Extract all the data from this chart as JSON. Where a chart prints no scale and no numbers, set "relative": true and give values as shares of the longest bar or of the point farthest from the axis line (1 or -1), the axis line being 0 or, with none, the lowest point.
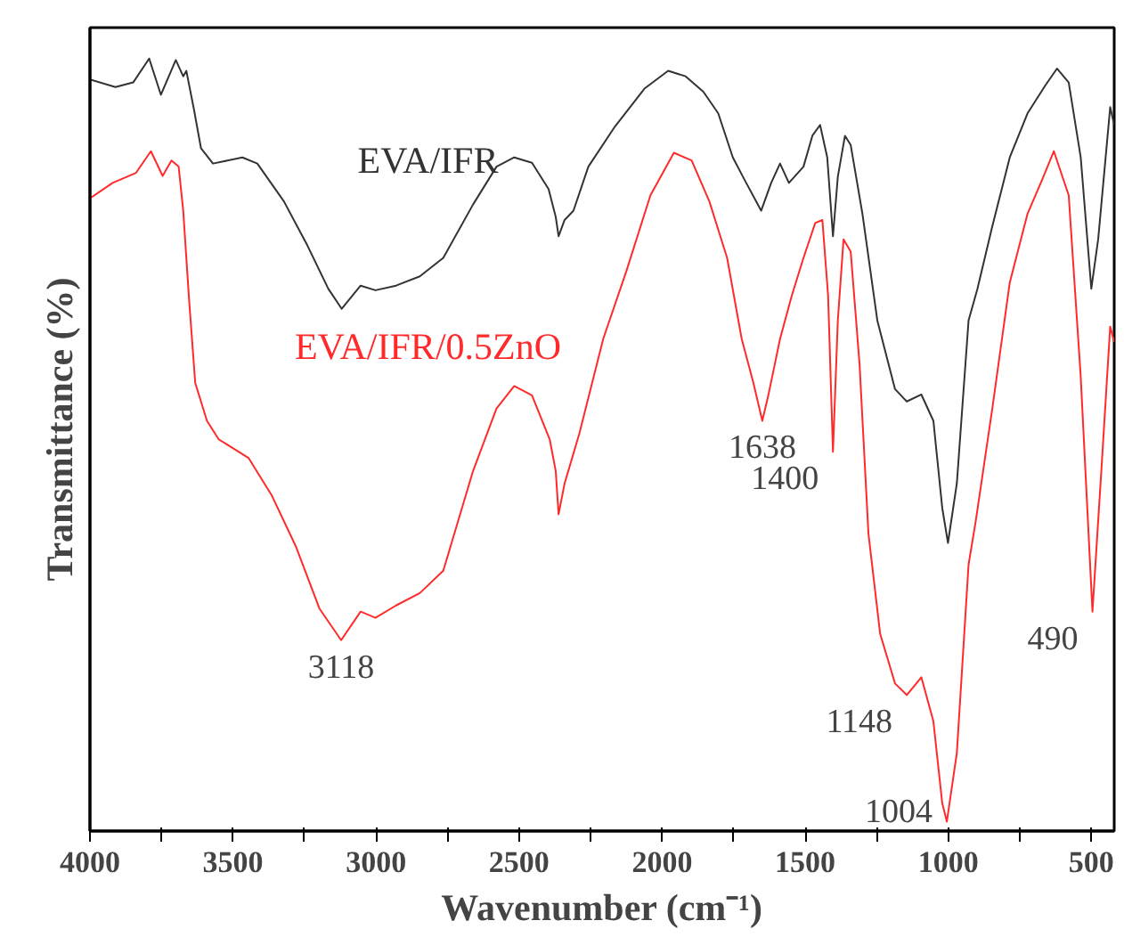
{
  "chart_data": {
    "type": "line",
    "relative": true,
    "xlabel": "Wavenumber (cm⁻¹)",
    "ylabel": "Transmittance (%)",
    "legend": false,
    "xlim": [
      4000,
      420
    ],
    "xticks": [
      4000,
      {
        "value": 3750,
        "label": null
      },
      3500,
      {
        "value": 3250,
        "label": null
      },
      3000,
      {
        "value": 2750,
        "label": null
      },
      2500,
      {
        "value": 2250,
        "label": null
      },
      2000,
      {
        "value": 1750,
        "label": null
      },
      1500,
      {
        "value": 1250,
        "label": null
      },
      1000,
      {
        "value": 750,
        "label": null
      },
      500
    ],
    "series": [
      {
        "name": "EVA/IFR",
        "color": "#333333",
        "x": [
          4000,
          3911,
          3849,
          3793,
          3752,
          3700,
          3674,
          3663,
          3636,
          3612,
          3570,
          3467,
          3415,
          3322,
          3240,
          3167,
          3120,
          3054,
          3002,
          2930,
          2847,
          2765,
          2661,
          2579,
          2517,
          2455,
          2397,
          2372,
          2362,
          2341,
          2310,
          2258,
          2165,
          2062,
          1979,
          1918,
          1856,
          1804,
          1753,
          1712,
          1654,
          1619,
          1588,
          1557,
          1506,
          1475,
          1448,
          1423,
          1403,
          1386,
          1361,
          1341,
          1300,
          1248,
          1186,
          1145,
          1094,
          1052,
          1021,
          1001,
          970,
          929,
          898,
          846,
          785,
          723,
          661,
          620,
          579,
          537,
          500,
          476,
          434,
          420
        ],
        "values": [
          0.973,
          0.963,
          0.969,
          1.0,
          0.953,
          0.998,
          0.977,
          0.984,
          0.933,
          0.884,
          0.864,
          0.872,
          0.864,
          0.815,
          0.758,
          0.702,
          0.676,
          0.706,
          0.7,
          0.706,
          0.718,
          0.742,
          0.811,
          0.86,
          0.872,
          0.865,
          0.831,
          0.795,
          0.77,
          0.791,
          0.803,
          0.86,
          0.912,
          0.961,
          0.984,
          0.977,
          0.957,
          0.929,
          0.872,
          0.843,
          0.803,
          0.839,
          0.864,
          0.839,
          0.86,
          0.9,
          0.914,
          0.872,
          0.77,
          0.847,
          0.9,
          0.888,
          0.799,
          0.661,
          0.572,
          0.556,
          0.565,
          0.531,
          0.418,
          0.373,
          0.45,
          0.661,
          0.702,
          0.783,
          0.872,
          0.929,
          0.965,
          0.987,
          0.969,
          0.872,
          0.702,
          0.766,
          0.937,
          0.914
        ]
      },
      {
        "name": "EVA/IFR/0.5ZnO",
        "color": "#ff2a2a",
        "x": [
          4000,
          3921,
          3839,
          3787,
          3746,
          3715,
          3690,
          3674,
          3653,
          3632,
          3591,
          3550,
          3446,
          3364,
          3281,
          3198,
          3122,
          3054,
          3002,
          2930,
          2847,
          2765,
          2661,
          2579,
          2517,
          2455,
          2393,
          2372,
          2362,
          2341,
          2289,
          2206,
          2124,
          2041,
          1959,
          1897,
          1835,
          1773,
          1722,
          1681,
          1650,
          1629,
          1588,
          1547,
          1506,
          1465,
          1440,
          1420,
          1403,
          1386,
          1366,
          1341,
          1310,
          1279,
          1238,
          1186,
          1145,
          1094,
          1052,
          1021,
          1005,
          970,
          929,
          904,
          846,
          785,
          723,
          672,
          631,
          579,
          537,
          496,
          465,
          434,
          420
        ],
        "values": [
          0.819,
          0.839,
          0.852,
          0.88,
          0.848,
          0.868,
          0.86,
          0.803,
          0.685,
          0.58,
          0.531,
          0.507,
          0.483,
          0.434,
          0.369,
          0.288,
          0.247,
          0.284,
          0.276,
          0.292,
          0.308,
          0.337,
          0.466,
          0.547,
          0.576,
          0.564,
          0.507,
          0.466,
          0.41,
          0.45,
          0.515,
          0.637,
          0.726,
          0.823,
          0.878,
          0.868,
          0.815,
          0.742,
          0.637,
          0.58,
          0.531,
          0.564,
          0.637,
          0.693,
          0.742,
          0.787,
          0.791,
          0.693,
          0.491,
          0.661,
          0.766,
          0.75,
          0.604,
          0.385,
          0.255,
          0.191,
          0.176,
          0.199,
          0.142,
          0.036,
          0.012,
          0.101,
          0.345,
          0.401,
          0.547,
          0.71,
          0.799,
          0.843,
          0.88,
          0.823,
          0.588,
          0.284,
          0.466,
          0.653,
          0.633
        ]
      }
    ],
    "annotations": [
      {
        "text": "3118",
        "x": 3122,
        "y": 0.247
      },
      {
        "text": "1638",
        "x": 1650,
        "y": 0.531
      },
      {
        "text": "1400",
        "x": 1403,
        "y": 0.491
      },
      {
        "text": "1148",
        "x": 1145,
        "y": 0.176
      },
      {
        "text": "1004",
        "x": 1005,
        "y": 0.012
      },
      {
        "text": "490",
        "x": 496,
        "y": 0.284
      }
    ]
  }
}
